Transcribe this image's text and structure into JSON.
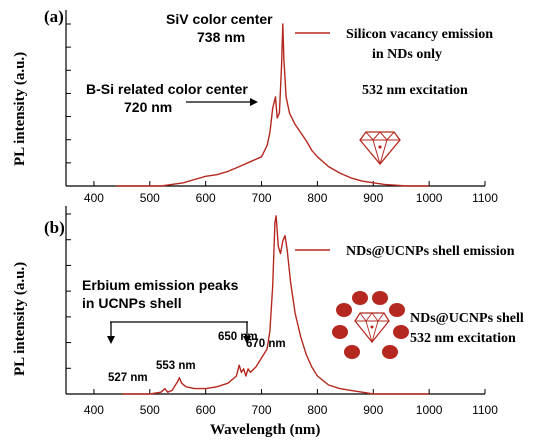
{
  "chart_data": [
    {
      "panel": "(a)",
      "type": "line",
      "ylabel": "PL intensity (a.u.)",
      "xlim": [
        350,
        1100
      ],
      "xticks": [
        400,
        500,
        600,
        700,
        800,
        900,
        1000,
        1100
      ],
      "legend": {
        "text_line1": "Silicon vacancy emission",
        "text_line2": "in NDs only",
        "placement": "top-right"
      },
      "note": "532 nm excitation",
      "annotations": [
        {
          "line1": "SiV color center",
          "line2": "738 nm"
        },
        {
          "line1": "B-Si related color center",
          "line2": "720 nm"
        }
      ],
      "series": [
        {
          "x": [
            440,
            520,
            540,
            560,
            580,
            600,
            620,
            640,
            660,
            680,
            700,
            710,
            715,
            720,
            725,
            728,
            732,
            736,
            738,
            740,
            744,
            750,
            760,
            770,
            780,
            790,
            800,
            820,
            840,
            860,
            880,
            900,
            920,
            940,
            960,
            980,
            1000
          ],
          "y": [
            0,
            0,
            0.01,
            0.02,
            0.04,
            0.06,
            0.07,
            0.09,
            0.12,
            0.15,
            0.18,
            0.25,
            0.33,
            0.48,
            0.55,
            0.42,
            0.45,
            0.75,
            1.0,
            0.78,
            0.55,
            0.45,
            0.38,
            0.33,
            0.28,
            0.22,
            0.18,
            0.12,
            0.08,
            0.05,
            0.03,
            0.02,
            0.01,
            0.005,
            0,
            0,
            0
          ]
        }
      ]
    },
    {
      "panel": "(b)",
      "type": "line",
      "ylabel": "PL intensity (a.u.)",
      "xlabel": "Wavelength (nm)",
      "xlim": [
        350,
        1100
      ],
      "xticks": [
        400,
        500,
        600,
        700,
        800,
        900,
        1000,
        1100
      ],
      "legend": {
        "text_line1": "NDs@UCNPs shell emission",
        "placement": "top-right"
      },
      "note_line1": "NDs@UCNPs shell",
      "note_line2": "532 nm excitation",
      "bracket_label_line1": "Erbium emission peaks",
      "bracket_label_line2": "in UCNPs shell",
      "peak_labels": [
        "527 nm",
        "553 nm",
        "650 nm",
        "670 nm"
      ],
      "series": [
        {
          "x": [
            450,
            500,
            520,
            527,
            532,
            540,
            550,
            553,
            557,
            565,
            580,
            600,
            620,
            640,
            655,
            660,
            664,
            668,
            672,
            676,
            680,
            690,
            700,
            710,
            715,
            720,
            724,
            726,
            730,
            734,
            738,
            742,
            746,
            752,
            760,
            770,
            780,
            790,
            800,
            820,
            840,
            860,
            880,
            900,
            940,
            1000
          ],
          "y": [
            0,
            0,
            0.01,
            0.03,
            0.01,
            0.02,
            0.07,
            0.09,
            0.06,
            0.04,
            0.03,
            0.03,
            0.04,
            0.06,
            0.1,
            0.16,
            0.12,
            0.14,
            0.1,
            0.14,
            0.12,
            0.15,
            0.2,
            0.25,
            0.35,
            0.6,
            0.95,
            0.99,
            0.82,
            0.78,
            0.85,
            0.88,
            0.8,
            0.62,
            0.45,
            0.32,
            0.22,
            0.15,
            0.1,
            0.05,
            0.03,
            0.02,
            0.01,
            0,
            0,
            0
          ]
        }
      ]
    }
  ]
}
